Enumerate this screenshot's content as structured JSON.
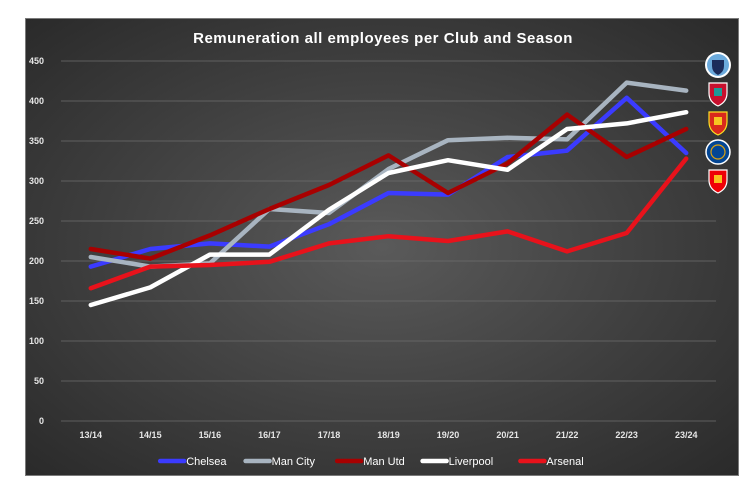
{
  "chart_data": {
    "type": "line",
    "title": "Remuneration all employees per Club and Season",
    "xlabel": "",
    "ylabel": "",
    "categories": [
      "13/14",
      "14/15",
      "15/16",
      "16/17",
      "17/18",
      "18/19",
      "19/20",
      "20/21",
      "21/22",
      "22/23",
      "23/24"
    ],
    "ylim": [
      0,
      450
    ],
    "yticks": [
      0,
      50,
      100,
      150,
      200,
      250,
      300,
      350,
      400,
      450
    ],
    "grid": true,
    "legend_position": "bottom",
    "series": [
      {
        "name": "Chelsea",
        "color": "#3b3bff",
        "values": [
          193,
          215,
          222,
          218,
          246,
          285,
          283,
          330,
          338,
          404,
          335
        ]
      },
      {
        "name": "Man City",
        "color": "#a8b4c0",
        "values": [
          205,
          193,
          197,
          265,
          260,
          315,
          351,
          354,
          352,
          423,
          413
        ]
      },
      {
        "name": "Man Utd",
        "color": "#a80000",
        "values": [
          215,
          203,
          232,
          265,
          295,
          332,
          285,
          322,
          383,
          330,
          365
        ]
      },
      {
        "name": "Liverpool",
        "color": "#ffffff",
        "values": [
          145,
          167,
          208,
          208,
          264,
          310,
          326,
          314,
          365,
          372,
          386
        ]
      },
      {
        "name": "Arsenal",
        "color": "#e8121b",
        "values": [
          166,
          193,
          195,
          199,
          222,
          231,
          225,
          237,
          212,
          235,
          328
        ]
      }
    ]
  },
  "logos": [
    {
      "name": "Man City",
      "icon": "man-city-crest-icon",
      "color": "#6cabdd"
    },
    {
      "name": "Liverpool",
      "icon": "liverpool-crest-icon",
      "color": "#c8102e"
    },
    {
      "name": "Man Utd",
      "icon": "man-utd-crest-icon",
      "color": "#da291c"
    },
    {
      "name": "Chelsea",
      "icon": "chelsea-crest-icon",
      "color": "#034694"
    },
    {
      "name": "Arsenal",
      "icon": "arsenal-crest-icon",
      "color": "#ef0107"
    }
  ]
}
